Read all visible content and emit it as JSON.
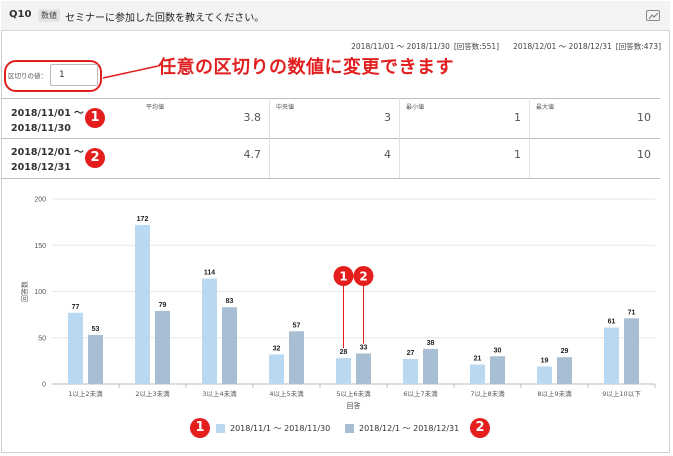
{
  "question": {
    "number": "Q10",
    "type": "数値",
    "text": "セミナーに参加した回数を教えてください。"
  },
  "periods": [
    {
      "range": "2018/11/01 ～ 2018/11/30",
      "count": "[回答数:551]"
    },
    {
      "range": "2018/12/01 ～ 2018/12/31",
      "count": "[回答数:473]"
    }
  ],
  "interval": {
    "label": "区切りの値：",
    "value": "1"
  },
  "callout": "任意の区切りの数値に変更できます",
  "stats": {
    "headers": [
      "平均値",
      "中央値",
      "最小値",
      "最大値"
    ],
    "rows": [
      {
        "label_line1": "2018/11/01 ～",
        "label_line2": "2018/11/30",
        "badge": "1",
        "values": [
          "3.8",
          "3",
          "1",
          "10"
        ]
      },
      {
        "label_line1": "2018/12/01 ～",
        "label_line2": "2018/12/31",
        "badge": "2",
        "values": [
          "4.7",
          "4",
          "1",
          "10"
        ]
      }
    ]
  },
  "chart_data": {
    "type": "bar",
    "categories": [
      "1以上2未満",
      "2以上3未満",
      "3以上4未満",
      "4以上5未満",
      "5以上6未満",
      "6以上7未満",
      "7以上8未満",
      "8以上9未満",
      "9以上10以下"
    ],
    "series": [
      {
        "name": "2018/11/1 ～ 2018/11/30",
        "values": [
          77,
          172,
          114,
          32,
          28,
          27,
          21,
          19,
          61
        ],
        "color": "#b9d8f2"
      },
      {
        "name": "2018/12/1 ～ 2018/12/31",
        "values": [
          53,
          79,
          83,
          57,
          33,
          38,
          30,
          29,
          71
        ],
        "color": "#a8bfd3"
      }
    ],
    "xlabel": "回答",
    "ylabel": "回答数",
    "ylim": [
      0,
      200
    ],
    "yticks": [
      0,
      50,
      100,
      150,
      200
    ],
    "grid": true,
    "legend": "bottom",
    "annotation_badges": [
      "1",
      "2"
    ]
  },
  "colors": {
    "accent_red": "#e41d1d",
    "series1": "#b9d8f2",
    "series2": "#a8bfd3"
  }
}
